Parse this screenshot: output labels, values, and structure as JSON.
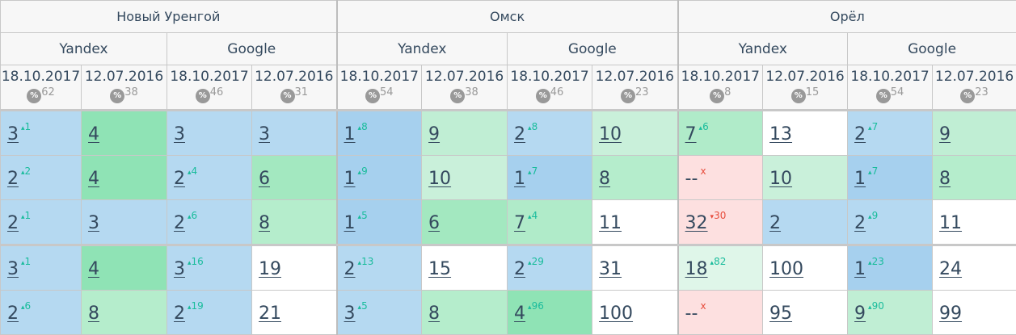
{
  "cities": [
    "Новый Уренгой",
    "Омск",
    "Орёл"
  ],
  "engines": [
    "Yandex",
    "Google"
  ],
  "dates": [
    "18.10.2017",
    "12.07.2016"
  ],
  "percent_icon": "%",
  "percents": [
    "62",
    "38",
    "46",
    "31",
    "54",
    "38",
    "46",
    "23",
    "8",
    "15",
    "54",
    "23"
  ],
  "colors": {
    "up": "#1abc9c",
    "down": "#e74c3c"
  },
  "rows": [
    [
      [
        "3",
        "1",
        "up",
        "#b5d9f1"
      ],
      [
        "4",
        "",
        "",
        "#8fe3b5"
      ],
      [
        "3",
        "",
        "",
        "#b5d9f1"
      ],
      [
        "3",
        "",
        "",
        "#b5d9f1"
      ],
      [
        "1",
        "8",
        "up",
        "#a6d0ee"
      ],
      [
        "9",
        "",
        "",
        "#c0eed4"
      ],
      [
        "2",
        "8",
        "up",
        "#b5d9f1"
      ],
      [
        "10",
        "",
        "",
        "#c9f0da"
      ],
      [
        "7",
        "6",
        "up",
        "#b0ebc9"
      ],
      [
        "13",
        "",
        "",
        "#ffffff"
      ],
      [
        "2",
        "7",
        "up",
        "#b5d9f1"
      ],
      [
        "9",
        "",
        "",
        "#c0eed4"
      ]
    ],
    [
      [
        "2",
        "2",
        "up",
        "#b5d9f1"
      ],
      [
        "4",
        "",
        "",
        "#8fe3b5"
      ],
      [
        "2",
        "4",
        "up",
        "#b5d9f1"
      ],
      [
        "6",
        "",
        "",
        "#a3e8c0"
      ],
      [
        "1",
        "9",
        "up",
        "#a6d0ee"
      ],
      [
        "10",
        "",
        "",
        "#c9f0da"
      ],
      [
        "1",
        "7",
        "up",
        "#a6d0ee"
      ],
      [
        "8",
        "",
        "",
        "#b5edcc"
      ],
      [
        "--",
        "x",
        "x",
        "#fde0e0"
      ],
      [
        "10",
        "",
        "",
        "#c9f0da"
      ],
      [
        "1",
        "7",
        "up",
        "#a6d0ee"
      ],
      [
        "8",
        "",
        "",
        "#b5edcc"
      ]
    ],
    [
      [
        "2",
        "1",
        "up",
        "#b5d9f1"
      ],
      [
        "3",
        "",
        "",
        "#b5d9f1"
      ],
      [
        "2",
        "6",
        "up",
        "#b5d9f1"
      ],
      [
        "8",
        "",
        "",
        "#b5edcc"
      ],
      [
        "1",
        "5",
        "up",
        "#a6d0ee"
      ],
      [
        "6",
        "",
        "",
        "#a3e8c0"
      ],
      [
        "7",
        "4",
        "up",
        "#b0ebc9"
      ],
      [
        "11",
        "",
        "",
        "#ffffff"
      ],
      [
        "32",
        "30",
        "down",
        "#fde0e0"
      ],
      [
        "2",
        "",
        "",
        "#b5d9f1"
      ],
      [
        "2",
        "9",
        "up",
        "#b5d9f1"
      ],
      [
        "11",
        "",
        "",
        "#ffffff"
      ]
    ],
    [
      [
        "3",
        "1",
        "up",
        "#b5d9f1"
      ],
      [
        "4",
        "",
        "",
        "#8fe3b5"
      ],
      [
        "3",
        "16",
        "up",
        "#b5d9f1"
      ],
      [
        "19",
        "",
        "",
        "#ffffff"
      ],
      [
        "2",
        "13",
        "up",
        "#b5d9f1"
      ],
      [
        "15",
        "",
        "",
        "#ffffff"
      ],
      [
        "2",
        "29",
        "up",
        "#b5d9f1"
      ],
      [
        "31",
        "",
        "",
        "#ffffff"
      ],
      [
        "18",
        "82",
        "up",
        "#dff6e9"
      ],
      [
        "100",
        "",
        "",
        "#ffffff"
      ],
      [
        "1",
        "23",
        "up",
        "#a6d0ee"
      ],
      [
        "24",
        "",
        "",
        "#ffffff"
      ]
    ],
    [
      [
        "2",
        "6",
        "up",
        "#b5d9f1"
      ],
      [
        "8",
        "",
        "",
        "#b5edcc"
      ],
      [
        "2",
        "19",
        "up",
        "#b5d9f1"
      ],
      [
        "21",
        "",
        "",
        "#ffffff"
      ],
      [
        "3",
        "5",
        "up",
        "#b5d9f1"
      ],
      [
        "8",
        "",
        "",
        "#b5edcc"
      ],
      [
        "4",
        "96",
        "up",
        "#8fe3b5"
      ],
      [
        "100",
        "",
        "",
        "#ffffff"
      ],
      [
        "--",
        "x",
        "x",
        "#fde0e0"
      ],
      [
        "95",
        "",
        "",
        "#ffffff"
      ],
      [
        "9",
        "90",
        "up",
        "#c0eed4"
      ],
      [
        "99",
        "",
        "",
        "#ffffff"
      ]
    ]
  ]
}
